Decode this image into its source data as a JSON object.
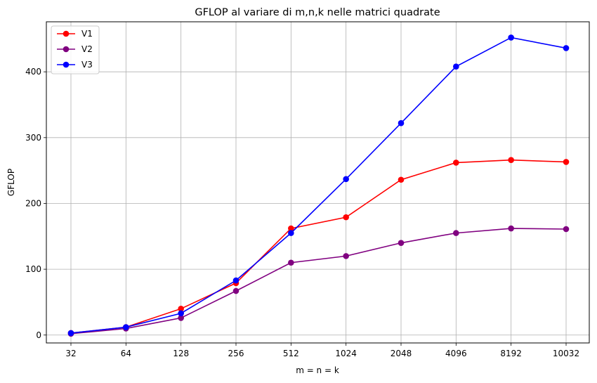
{
  "chart_data": {
    "type": "line",
    "title": "GFLOP al variare di m,n,k nelle matrici quadrate",
    "xlabel": "m = n = k",
    "ylabel": "GFLOP",
    "categories": [
      "32",
      "64",
      "128",
      "256",
      "512",
      "1024",
      "2048",
      "4096",
      "8192",
      "10032"
    ],
    "ylim": [
      -12,
      476
    ],
    "yticks": [
      0,
      100,
      200,
      300,
      400
    ],
    "grid": true,
    "legend_position": "top-left",
    "series": [
      {
        "name": "V1",
        "color": "#ff0000",
        "values": [
          3,
          12,
          40,
          79,
          162,
          179,
          236,
          262,
          266,
          263
        ]
      },
      {
        "name": "V2",
        "color": "#800080",
        "values": [
          2,
          10,
          26,
          67,
          110,
          120,
          140,
          155,
          162,
          161
        ]
      },
      {
        "name": "V3",
        "color": "#0000ff",
        "values": [
          3,
          12,
          33,
          83,
          155,
          237,
          322,
          408,
          452,
          436
        ]
      }
    ]
  }
}
